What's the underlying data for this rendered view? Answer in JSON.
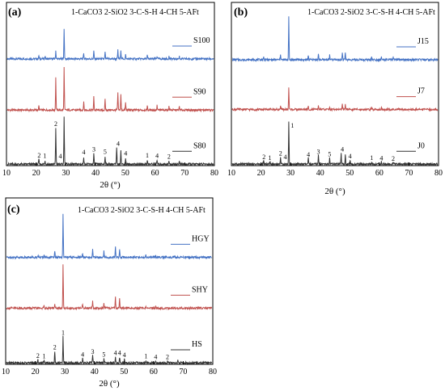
{
  "legend_text": "1-CaCO3  2-SiO2  3-C-S-H  4-CH  5-AFt",
  "chart_data": [
    {
      "type": "line",
      "panel_label": "(a)",
      "xlabel": "2θ (°)",
      "xlim": [
        10,
        80
      ],
      "xticks": [
        10,
        20,
        30,
        40,
        50,
        60,
        70,
        80
      ],
      "grid": false,
      "legend_placement": "top",
      "series": [
        {
          "name": "S100",
          "color": "#4472c4",
          "offset": 3.4,
          "baseline": 0.25,
          "peaks": [
            [
              20.9,
              0.12
            ],
            [
              23.0,
              0.1
            ],
            [
              26.6,
              0.28
            ],
            [
              29.4,
              1.05
            ],
            [
              36.0,
              0.2
            ],
            [
              39.4,
              0.28
            ],
            [
              43.2,
              0.22
            ],
            [
              47.5,
              0.3
            ],
            [
              48.5,
              0.32
            ],
            [
              50.1,
              0.14
            ],
            [
              57.4,
              0.12
            ],
            [
              60.7,
              0.1
            ],
            [
              64.7,
              0.09
            ],
            [
              68.2,
              0.09
            ]
          ]
        },
        {
          "name": "S90",
          "color": "#c0504d",
          "offset": 1.8,
          "baseline": 0.1,
          "peaks": [
            [
              20.9,
              0.15
            ],
            [
              26.6,
              1.1
            ],
            [
              29.4,
              1.45
            ],
            [
              36.0,
              0.3
            ],
            [
              39.4,
              0.45
            ],
            [
              43.2,
              0.35
            ],
            [
              47.5,
              0.6
            ],
            [
              48.5,
              0.55
            ],
            [
              50.1,
              0.25
            ],
            [
              57.4,
              0.15
            ],
            [
              60.7,
              0.15
            ],
            [
              64.7,
              0.12
            ],
            [
              68.2,
              0.12
            ]
          ]
        },
        {
          "name": "S80",
          "color": "#333333",
          "offset": 0.0,
          "baseline": 0.05,
          "peaks": [
            [
              20.9,
              0.18
            ],
            [
              23.0,
              0.12
            ],
            [
              26.6,
              1.25
            ],
            [
              29.4,
              1.6
            ],
            [
              36.0,
              0.25
            ],
            [
              39.4,
              0.35
            ],
            [
              43.2,
              0.28
            ],
            [
              47.1,
              0.55
            ],
            [
              48.5,
              0.5
            ],
            [
              50.1,
              0.22
            ],
            [
              57.4,
              0.15
            ],
            [
              60.7,
              0.13
            ],
            [
              64.7,
              0.11
            ],
            [
              68.2,
              0.11
            ]
          ]
        }
      ],
      "peak_labels": [
        {
          "x": 21.0,
          "y": 0.28,
          "text": "2"
        },
        {
          "x": 22.9,
          "y": 0.26,
          "text": "1"
        },
        {
          "x": 26.6,
          "y": 1.35,
          "text": "2"
        },
        {
          "x": 28.1,
          "y": 0.25,
          "text": "4"
        },
        {
          "x": 36.0,
          "y": 0.38,
          "text": "4"
        },
        {
          "x": 39.4,
          "y": 0.48,
          "text": "3"
        },
        {
          "x": 43.2,
          "y": 0.4,
          "text": "5"
        },
        {
          "x": 47.6,
          "y": 0.68,
          "text": "4"
        },
        {
          "x": 50.1,
          "y": 0.34,
          "text": "4"
        },
        {
          "x": 57.4,
          "y": 0.28,
          "text": "1"
        },
        {
          "x": 60.7,
          "y": 0.26,
          "text": "4"
        },
        {
          "x": 64.7,
          "y": 0.24,
          "text": "2"
        }
      ]
    },
    {
      "type": "line",
      "panel_label": "(b)",
      "xlabel": "2θ (°)",
      "xlim": [
        10,
        80
      ],
      "xticks": [
        10,
        20,
        30,
        40,
        50,
        60,
        70,
        80
      ],
      "grid": false,
      "legend_placement": "top",
      "series": [
        {
          "name": "J15",
          "color": "#4472c4",
          "offset": 3.4,
          "baseline": 0.22,
          "peaks": [
            [
              20.9,
              0.1
            ],
            [
              26.6,
              0.2
            ],
            [
              29.4,
              1.45
            ],
            [
              36.0,
              0.15
            ],
            [
              39.4,
              0.2
            ],
            [
              43.2,
              0.15
            ],
            [
              47.5,
              0.25
            ],
            [
              48.5,
              0.25
            ],
            [
              57.4,
              0.1
            ],
            [
              60.7,
              0.08
            ],
            [
              64.7,
              0.08
            ]
          ]
        },
        {
          "name": "J7",
          "color": "#c0504d",
          "offset": 1.8,
          "baseline": 0.12,
          "peaks": [
            [
              26.6,
              0.12
            ],
            [
              29.4,
              0.75
            ],
            [
              36.0,
              0.1
            ],
            [
              39.4,
              0.15
            ],
            [
              43.2,
              0.1
            ],
            [
              47.5,
              0.17
            ],
            [
              48.5,
              0.17
            ],
            [
              57.4,
              0.06
            ],
            [
              60.7,
              0.06
            ]
          ]
        },
        {
          "name": "J0",
          "color": "#333333",
          "offset": 0.0,
          "baseline": 0.05,
          "peaks": [
            [
              20.9,
              0.12
            ],
            [
              23.0,
              0.1
            ],
            [
              26.6,
              0.25
            ],
            [
              29.4,
              1.45
            ],
            [
              36.0,
              0.2
            ],
            [
              39.4,
              0.3
            ],
            [
              43.2,
              0.22
            ],
            [
              47.1,
              0.35
            ],
            [
              48.5,
              0.3
            ],
            [
              50.1,
              0.15
            ],
            [
              57.4,
              0.1
            ],
            [
              60.7,
              0.08
            ],
            [
              64.7,
              0.07
            ]
          ]
        }
      ],
      "peak_labels": [
        {
          "x": 21.0,
          "y": 0.22,
          "text": "2"
        },
        {
          "x": 23.0,
          "y": 0.2,
          "text": "1"
        },
        {
          "x": 26.6,
          "y": 0.35,
          "text": "2"
        },
        {
          "x": 28.2,
          "y": 0.22,
          "text": "4"
        },
        {
          "x": 30.6,
          "y": 1.3,
          "text": "1"
        },
        {
          "x": 36.0,
          "y": 0.3,
          "text": "4"
        },
        {
          "x": 39.4,
          "y": 0.4,
          "text": "3"
        },
        {
          "x": 43.2,
          "y": 0.32,
          "text": "5"
        },
        {
          "x": 47.5,
          "y": 0.48,
          "text": "4"
        },
        {
          "x": 50.1,
          "y": 0.25,
          "text": "4"
        },
        {
          "x": 57.4,
          "y": 0.2,
          "text": "1"
        },
        {
          "x": 60.7,
          "y": 0.18,
          "text": "4"
        },
        {
          "x": 64.7,
          "y": 0.17,
          "text": "2"
        }
      ]
    },
    {
      "type": "line",
      "panel_label": "(c)",
      "xlabel": "2θ (°)",
      "xlim": [
        10,
        80
      ],
      "xticks": [
        10,
        20,
        30,
        40,
        50,
        60,
        70,
        80
      ],
      "grid": false,
      "legend_placement": "top",
      "series": [
        {
          "name": "HGY",
          "color": "#4472c4",
          "offset": 3.4,
          "baseline": 0.22,
          "peaks": [
            [
              20.9,
              0.08
            ],
            [
              23.0,
              0.08
            ],
            [
              26.6,
              0.2
            ],
            [
              29.4,
              1.5
            ],
            [
              36.0,
              0.15
            ],
            [
              39.4,
              0.25
            ],
            [
              43.2,
              0.2
            ],
            [
              47.1,
              0.35
            ],
            [
              48.5,
              0.3
            ],
            [
              57.4,
              0.08
            ],
            [
              60.7,
              0.07
            ]
          ]
        },
        {
          "name": "SHY",
          "color": "#c0504d",
          "offset": 1.8,
          "baseline": 0.1,
          "peaks": [
            [
              23.0,
              0.08
            ],
            [
              26.6,
              0.12
            ],
            [
              29.4,
              1.5
            ],
            [
              36.0,
              0.15
            ],
            [
              39.4,
              0.25
            ],
            [
              43.2,
              0.2
            ],
            [
              47.1,
              0.4
            ],
            [
              48.5,
              0.35
            ],
            [
              57.4,
              0.08
            ],
            [
              60.7,
              0.07
            ]
          ]
        },
        {
          "name": "HS",
          "color": "#333333",
          "offset": 0.0,
          "baseline": 0.05,
          "peaks": [
            [
              20.9,
              0.1
            ],
            [
              23.0,
              0.08
            ],
            [
              26.6,
              0.4
            ],
            [
              29.4,
              0.9
            ],
            [
              36.0,
              0.15
            ],
            [
              39.4,
              0.25
            ],
            [
              43.2,
              0.15
            ],
            [
              47.1,
              0.2
            ],
            [
              48.5,
              0.2
            ],
            [
              50.1,
              0.12
            ],
            [
              57.4,
              0.08
            ],
            [
              60.7,
              0.07
            ],
            [
              64.7,
              0.07
            ],
            [
              68.2,
              0.1
            ]
          ]
        }
      ],
      "peak_labels": [
        {
          "x": 20.9,
          "y": 0.22,
          "text": "2"
        },
        {
          "x": 23.0,
          "y": 0.2,
          "text": "1"
        },
        {
          "x": 26.6,
          "y": 0.5,
          "text": "2"
        },
        {
          "x": 29.4,
          "y": 1.0,
          "text": "1"
        },
        {
          "x": 36.0,
          "y": 0.26,
          "text": "4"
        },
        {
          "x": 39.4,
          "y": 0.36,
          "text": "3"
        },
        {
          "x": 43.2,
          "y": 0.26,
          "text": "5"
        },
        {
          "x": 47.1,
          "y": 0.32,
          "text": "4"
        },
        {
          "x": 48.5,
          "y": 0.32,
          "text": "4"
        },
        {
          "x": 50.1,
          "y": 0.24,
          "text": "4"
        },
        {
          "x": 57.4,
          "y": 0.2,
          "text": "1"
        },
        {
          "x": 60.7,
          "y": 0.18,
          "text": "4"
        },
        {
          "x": 64.7,
          "y": 0.18,
          "text": "2"
        }
      ]
    }
  ]
}
